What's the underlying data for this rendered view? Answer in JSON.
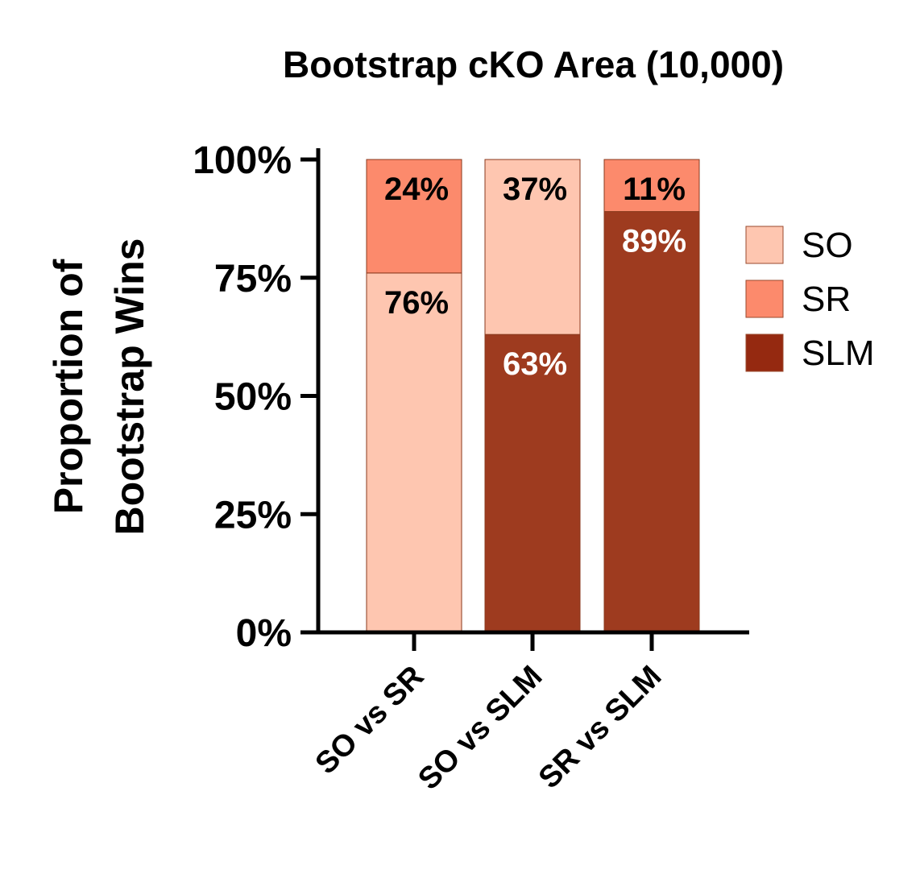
{
  "chart_data": {
    "type": "bar",
    "stacked": true,
    "title": "Bootstrap cKO Area (10,000)",
    "ylabel": [
      "Proportion of",
      "Bootstrap Wins"
    ],
    "xlabel": "",
    "ylim": [
      0,
      100
    ],
    "yticks": [
      "0%",
      "25%",
      "50%",
      "75%",
      "100%"
    ],
    "categories": [
      "SO vs SR",
      "SO vs SLM",
      "SR vs SLM"
    ],
    "series": [
      {
        "name": "SLM",
        "color": "#9e3b1f",
        "values": [
          0,
          63,
          89
        ]
      },
      {
        "name": "SO",
        "color": "#fec6b0",
        "values": [
          76,
          37,
          0
        ]
      },
      {
        "name": "SR",
        "color": "#fc8a6c",
        "values": [
          24,
          0,
          11
        ]
      }
    ],
    "data_labels": [
      [
        "76%",
        "24%"
      ],
      [
        "63%",
        "37%"
      ],
      [
        "89%",
        "11%"
      ]
    ],
    "legend": {
      "position": "right",
      "items": [
        {
          "label": "SO",
          "color": "#fec6b0"
        },
        {
          "label": "SR",
          "color": "#fc8a6c"
        },
        {
          "label": "SLM",
          "color": "#952910"
        }
      ]
    },
    "grid": false
  }
}
